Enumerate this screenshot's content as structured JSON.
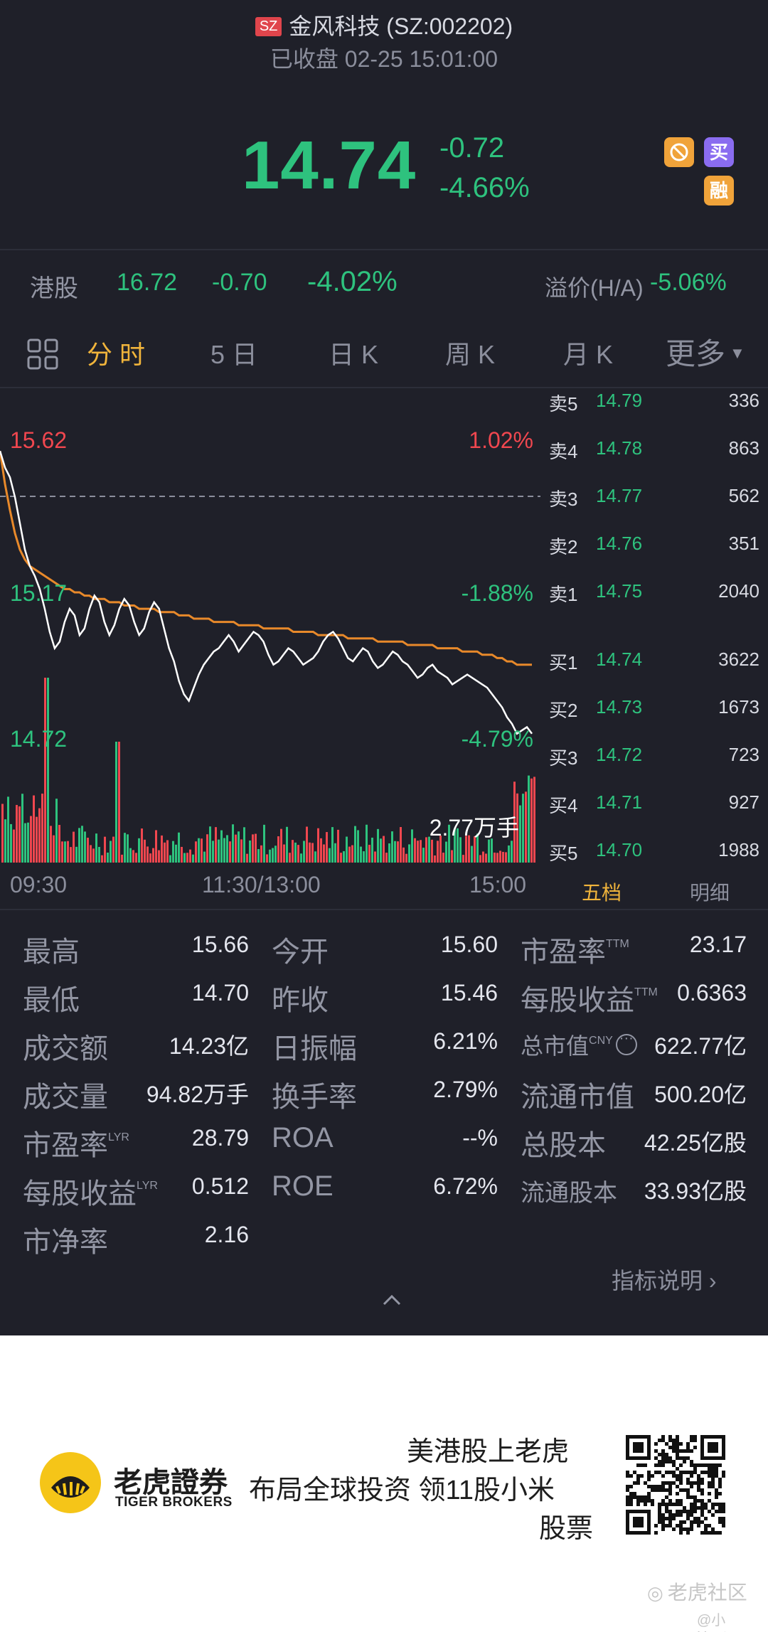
{
  "header": {
    "exchange_badge": "SZ",
    "title": "金风科技 (SZ:002202)",
    "status": "已收盘 02-25 15:01:00"
  },
  "quote": {
    "price": "14.74",
    "change": "-0.72",
    "change_pct": "-4.66%",
    "badges": {
      "buy": "买",
      "margin": "融"
    }
  },
  "hk": {
    "label": "港股",
    "price": "16.72",
    "change": "-0.70",
    "change_pct": "-4.02%",
    "premium_label": "溢价(H/A)",
    "premium": "-5.06%"
  },
  "tabs": [
    {
      "label": "分 时"
    },
    {
      "label": "5 日"
    },
    {
      "label": "日 K"
    },
    {
      "label": "周 K"
    },
    {
      "label": "月 K"
    },
    {
      "label": "更多"
    }
  ],
  "chart_data": {
    "type": "line",
    "price_labels": {
      "high": "15.62",
      "mid": "15.17",
      "low": "14.72"
    },
    "pct_labels": {
      "high": "1.02%",
      "mid": "-1.88%",
      "low": "-4.79%"
    },
    "volume_label": "2.77万手",
    "x_ticks": [
      "09:30",
      "11:30/13:00",
      "15:00"
    ],
    "ylim": [
      14.72,
      15.62
    ],
    "prev_close": 15.46,
    "series": [
      {
        "values": [
          15.6,
          15.55,
          15.52,
          15.46,
          15.38,
          15.3,
          15.25,
          15.22,
          15.18,
          15.12,
          15.05,
          15.0,
          15.02,
          15.08,
          15.12,
          15.1,
          15.04,
          15.06,
          15.12,
          15.16,
          15.14,
          15.08,
          15.04,
          15.07,
          15.12,
          15.15,
          15.13,
          15.08,
          15.04,
          15.06,
          15.11,
          15.14,
          15.12,
          15.06,
          15.0,
          14.96,
          14.9,
          14.86,
          14.84,
          14.88,
          14.92,
          14.95,
          14.97,
          14.99,
          15.0,
          15.02,
          15.04,
          15.02,
          14.99,
          15.01,
          15.03,
          15.05,
          15.04,
          15.02,
          14.98,
          14.95,
          14.96,
          14.98,
          15.0,
          14.99,
          14.97,
          14.95,
          14.96,
          14.97,
          14.99,
          15.02,
          15.04,
          15.05,
          15.03,
          15.0,
          14.97,
          14.96,
          14.98,
          15.0,
          14.99,
          14.96,
          14.94,
          14.95,
          14.97,
          14.99,
          14.98,
          14.96,
          14.95,
          14.93,
          14.91,
          14.92,
          14.94,
          14.95,
          14.93,
          14.92,
          14.91,
          14.89,
          14.9,
          14.91,
          14.92,
          14.91,
          14.9,
          14.89,
          14.88,
          14.86,
          14.84,
          14.82,
          14.79,
          14.77,
          14.74,
          14.75,
          14.76,
          14.74
        ]
      },
      {
        "values": [
          15.6,
          15.5,
          15.42,
          15.35,
          15.3,
          15.27,
          15.25,
          15.24,
          15.23,
          15.22,
          15.21,
          15.2,
          15.19,
          15.18,
          15.18,
          15.17,
          15.17,
          15.16,
          15.16,
          15.15,
          15.15,
          15.15,
          15.14,
          15.14,
          15.14,
          15.13,
          15.13,
          15.13,
          15.12,
          15.12,
          15.12,
          15.12,
          15.11,
          15.11,
          15.11,
          15.11,
          15.1,
          15.1,
          15.1,
          15.09,
          15.09,
          15.09,
          15.09,
          15.08,
          15.08,
          15.08,
          15.08,
          15.08,
          15.07,
          15.07,
          15.07,
          15.07,
          15.07,
          15.06,
          15.06,
          15.06,
          15.06,
          15.06,
          15.06,
          15.05,
          15.05,
          15.05,
          15.05,
          15.05,
          15.04,
          15.04,
          15.04,
          15.04,
          15.04,
          15.04,
          15.03,
          15.03,
          15.03,
          15.03,
          15.03,
          15.03,
          15.02,
          15.02,
          15.02,
          15.02,
          15.02,
          15.02,
          15.01,
          15.01,
          15.01,
          15.01,
          15.01,
          15.01,
          15.0,
          15.0,
          15.0,
          15.0,
          15.0,
          14.99,
          14.99,
          14.99,
          14.99,
          14.98,
          14.98,
          14.98,
          14.97,
          14.97,
          14.96,
          14.96,
          14.95,
          14.95,
          14.95,
          14.95
        ]
      }
    ]
  },
  "order_book": {
    "asks": [
      {
        "label": "卖5",
        "price": "14.79",
        "vol": "336"
      },
      {
        "label": "卖4",
        "price": "14.78",
        "vol": "863"
      },
      {
        "label": "卖3",
        "price": "14.77",
        "vol": "562"
      },
      {
        "label": "卖2",
        "price": "14.76",
        "vol": "351"
      },
      {
        "label": "卖1",
        "price": "14.75",
        "vol": "2040"
      }
    ],
    "bids": [
      {
        "label": "买1",
        "price": "14.74",
        "vol": "3622"
      },
      {
        "label": "买2",
        "price": "14.73",
        "vol": "1673"
      },
      {
        "label": "买3",
        "price": "14.72",
        "vol": "723"
      },
      {
        "label": "买4",
        "price": "14.71",
        "vol": "927"
      },
      {
        "label": "买5",
        "price": "14.70",
        "vol": "1988"
      }
    ],
    "tab_five": "五档",
    "tab_detail": "明细"
  },
  "stats": {
    "high": {
      "label": "最高",
      "value": "15.66"
    },
    "low": {
      "label": "最低",
      "value": "14.70"
    },
    "turnover": {
      "label": "成交额",
      "value": "14.23亿"
    },
    "volume": {
      "label": "成交量",
      "value": "94.82万手"
    },
    "pe_lyr": {
      "label": "市盈率",
      "sup": "LYR",
      "value": "28.79"
    },
    "eps_lyr": {
      "label": "每股收益",
      "sup": "LYR",
      "value": "0.512"
    },
    "pb": {
      "label": "市净率",
      "value": "2.16"
    },
    "open": {
      "label": "今开",
      "value": "15.60"
    },
    "prev_close": {
      "label": "昨收",
      "value": "15.46"
    },
    "amplitude": {
      "label": "日振幅",
      "value": "6.21%"
    },
    "turnover_rate": {
      "label": "换手率",
      "value": "2.79%"
    },
    "roa": {
      "label": "ROA",
      "value": "--%"
    },
    "roe": {
      "label": "ROE",
      "value": "6.72%"
    },
    "pe_ttm": {
      "label": "市盈率",
      "sup": "TTM",
      "value": "23.17"
    },
    "eps_ttm": {
      "label": "每股收益",
      "sup": "TTM",
      "value": "0.6363"
    },
    "mkt_cap": {
      "label": "总市值",
      "sup": "CNY",
      "value": "622.77亿"
    },
    "float_cap": {
      "label": "流通市值",
      "value": "500.20亿"
    },
    "total_shares": {
      "label": "总股本",
      "value": "42.25亿股"
    },
    "float_shares": {
      "label": "流通股本",
      "value": "33.93亿股"
    }
  },
  "indicator_link": "指标说明 ›",
  "ad": {
    "brand_cn": "老虎證券",
    "brand_en": "TIGER BROKERS",
    "line1": "美港股上老虎",
    "line2": "布局全球投资 领11股小米",
    "line3": "股票",
    "watermark": "老虎社区",
    "watermark_user": "@小Hunter"
  },
  "colors": {
    "up": "#f0474f",
    "down": "#2ec27e",
    "accent": "#f0b43b",
    "avg_line": "#e8892a",
    "bg": "#1f2029"
  }
}
